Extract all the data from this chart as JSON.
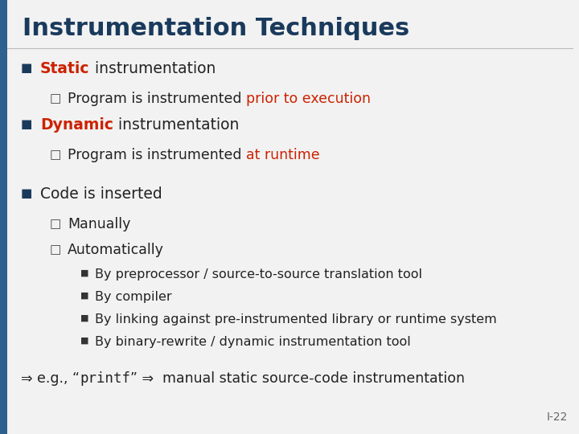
{
  "title": "Instrumentation Techniques",
  "title_color": "#1a3a5c",
  "title_fontsize": 22,
  "background_color": "#f2f2f2",
  "accent_bar_color": "#2e6090",
  "dark_color": "#222222",
  "red_color": "#cc2200",
  "slide_number": "I-22",
  "content": [
    {
      "type": "bullet1",
      "bullet_color": "#1a3a5c",
      "parts": [
        {
          "text": "Static",
          "color": "#cc2200",
          "bold": true
        },
        {
          "text": " instrumentation",
          "color": "#222222",
          "bold": false
        }
      ]
    },
    {
      "type": "bullet2",
      "parts": [
        {
          "text": "Program is instrumented ",
          "color": "#222222",
          "bold": false
        },
        {
          "text": "prior to execution",
          "color": "#cc2200",
          "bold": false
        }
      ]
    },
    {
      "type": "bullet1",
      "bullet_color": "#1a3a5c",
      "parts": [
        {
          "text": "Dynamic",
          "color": "#cc2200",
          "bold": true
        },
        {
          "text": " instrumentation",
          "color": "#222222",
          "bold": false
        }
      ]
    },
    {
      "type": "bullet2",
      "parts": [
        {
          "text": "Program is instrumented ",
          "color": "#222222",
          "bold": false
        },
        {
          "text": "at runtime",
          "color": "#cc2200",
          "bold": false
        }
      ]
    },
    {
      "type": "spacer"
    },
    {
      "type": "bullet1",
      "bullet_color": "#1a3a5c",
      "parts": [
        {
          "text": "Code is inserted",
          "color": "#222222",
          "bold": false
        }
      ]
    },
    {
      "type": "bullet2",
      "parts": [
        {
          "text": "Manually",
          "color": "#222222",
          "bold": false
        }
      ]
    },
    {
      "type": "bullet2",
      "parts": [
        {
          "text": "Automatically",
          "color": "#222222",
          "bold": false
        }
      ]
    },
    {
      "type": "bullet3",
      "parts": [
        {
          "text": "By preprocessor / source-to-source translation tool",
          "color": "#222222",
          "bold": false
        }
      ]
    },
    {
      "type": "bullet3",
      "parts": [
        {
          "text": "By compiler",
          "color": "#222222",
          "bold": false
        }
      ]
    },
    {
      "type": "bullet3",
      "parts": [
        {
          "text": "By linking against pre-instrumented library or runtime system",
          "color": "#222222",
          "bold": false
        }
      ]
    },
    {
      "type": "bullet3",
      "parts": [
        {
          "text": "By binary-rewrite / dynamic instrumentation tool",
          "color": "#222222",
          "bold": false
        }
      ]
    },
    {
      "type": "spacer"
    },
    {
      "type": "special",
      "parts": [
        {
          "text": "⇒ e.g., “",
          "color": "#222222",
          "bold": false,
          "mono": false
        },
        {
          "text": "printf",
          "color": "#222222",
          "bold": false,
          "mono": true
        },
        {
          "text": "” ⇒  manual static source-code instrumentation",
          "color": "#222222",
          "bold": false,
          "mono": false
        }
      ]
    }
  ]
}
